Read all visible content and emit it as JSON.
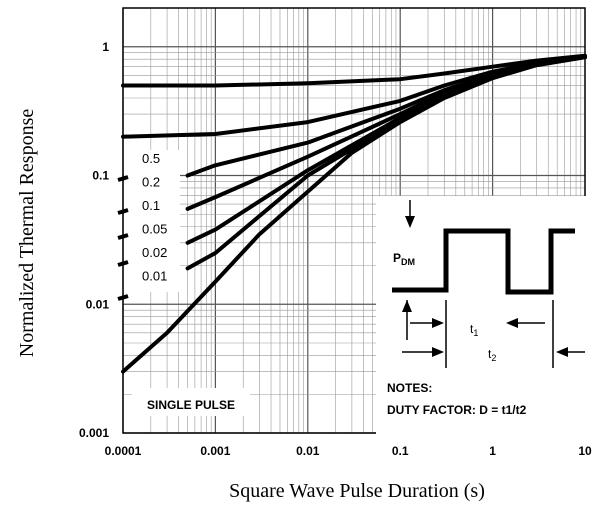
{
  "chart_data": {
    "type": "line",
    "title": "",
    "xlabel": "Square Wave Pulse Duration (s)",
    "ylabel": "Normalized Thermal Response",
    "xscale": "log",
    "yscale": "log",
    "xlim": [
      0.0001,
      10
    ],
    "ylim": [
      0.001,
      2
    ],
    "x_ticks": [
      "0.0001",
      "0.001",
      "0.01",
      "0.1",
      "1",
      "10"
    ],
    "y_ticks": [
      "0.001",
      "0.01",
      "0.1",
      "1"
    ],
    "grid": true,
    "series": [
      {
        "name": "0.5",
        "x": [
          0.0001,
          0.001,
          0.01,
          0.1,
          0.3,
          1,
          3,
          10
        ],
        "y": [
          0.5,
          0.5,
          0.52,
          0.56,
          0.62,
          0.7,
          0.78,
          0.85
        ]
      },
      {
        "name": "0.2",
        "x": [
          0.0001,
          0.001,
          0.01,
          0.1,
          0.3,
          1,
          3,
          10
        ],
        "y": [
          0.2,
          0.21,
          0.26,
          0.38,
          0.5,
          0.64,
          0.75,
          0.84
        ]
      },
      {
        "name": "0.1",
        "x": [
          0.0005,
          0.001,
          0.01,
          0.1,
          0.3,
          1,
          3,
          10
        ],
        "y": [
          0.1,
          0.12,
          0.18,
          0.33,
          0.46,
          0.61,
          0.74,
          0.84
        ]
      },
      {
        "name": "0.05",
        "x": [
          0.0005,
          0.001,
          0.01,
          0.1,
          0.3,
          1,
          3,
          10
        ],
        "y": [
          0.055,
          0.068,
          0.14,
          0.3,
          0.44,
          0.6,
          0.73,
          0.83
        ]
      },
      {
        "name": "0.02",
        "x": [
          0.0005,
          0.001,
          0.01,
          0.1,
          0.3,
          1,
          3,
          10
        ],
        "y": [
          0.03,
          0.038,
          0.11,
          0.28,
          0.42,
          0.59,
          0.73,
          0.83
        ]
      },
      {
        "name": "0.01",
        "x": [
          0.0005,
          0.001,
          0.01,
          0.1,
          0.3,
          1,
          3,
          10
        ],
        "y": [
          0.019,
          0.025,
          0.1,
          0.27,
          0.41,
          0.58,
          0.72,
          0.83
        ]
      },
      {
        "name": "SINGLE PULSE",
        "x": [
          0.0001,
          0.0003,
          0.001,
          0.003,
          0.01,
          0.03,
          0.1,
          0.3,
          1,
          3,
          10
        ],
        "y": [
          0.003,
          0.006,
          0.015,
          0.035,
          0.075,
          0.15,
          0.26,
          0.4,
          0.57,
          0.72,
          0.83
        ]
      }
    ],
    "line_color": "#000000"
  },
  "inset": {
    "pdm_label": "P",
    "pdm_sub": "DM",
    "t1_label": "t",
    "t1_sub": "1",
    "t2_label": "t",
    "t2_sub": "2",
    "notes_title": "NOTES:",
    "notes_text": "DUTY FACTOR: D = t1/t2"
  }
}
